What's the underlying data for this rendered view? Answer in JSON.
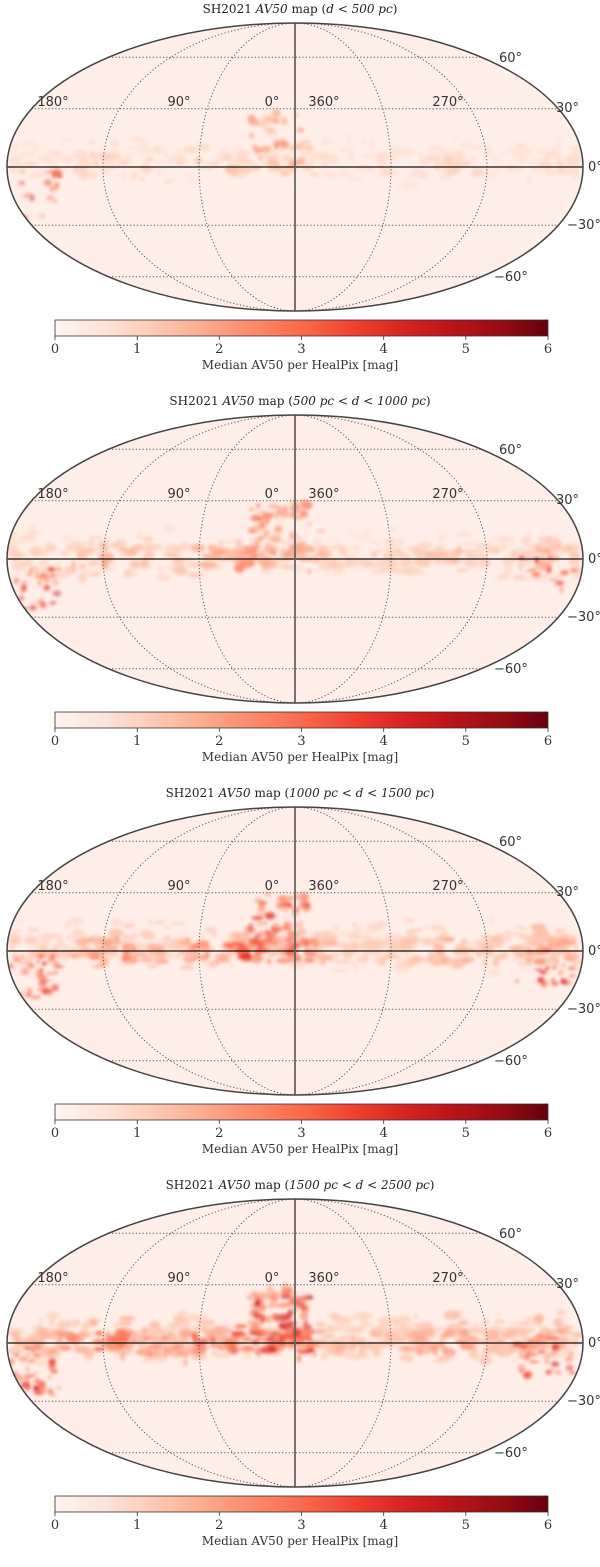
{
  "chart_data": [
    {
      "type": "heatmap",
      "projection": "mollweide",
      "title": {
        "prefix": "SH2021 ",
        "math": "AV50",
        "suffix": " map (",
        "range": "d < 500 pc",
        "close": ")"
      },
      "lon_tick_labels": [
        "180°",
        "90°",
        "0°",
        "360°",
        "270°"
      ],
      "lat_tick_labels": [
        "60°",
        "30°",
        "0°",
        "−30°",
        "−60°"
      ],
      "colorbar": {
        "label": "Median AV50 per HealPix [mag]",
        "ticks": [
          "0",
          "1",
          "2",
          "3",
          "4",
          "5",
          "6"
        ],
        "range": [
          0,
          6
        ],
        "colormap": "Reds"
      },
      "intensity": 0.25
    },
    {
      "type": "heatmap",
      "projection": "mollweide",
      "title": {
        "prefix": "SH2021 ",
        "math": "AV50",
        "suffix": " map (",
        "range": "500 pc < d < 1000 pc",
        "close": ")"
      },
      "lon_tick_labels": [
        "180°",
        "90°",
        "0°",
        "360°",
        "270°"
      ],
      "lat_tick_labels": [
        "60°",
        "30°",
        "0°",
        "−30°",
        "−60°"
      ],
      "colorbar": {
        "label": "Median AV50 per HealPix [mag]",
        "ticks": [
          "0",
          "1",
          "2",
          "3",
          "4",
          "5",
          "6"
        ],
        "range": [
          0,
          6
        ],
        "colormap": "Reds"
      },
      "intensity": 0.55
    },
    {
      "type": "heatmap",
      "projection": "mollweide",
      "title": {
        "prefix": "SH2021 ",
        "math": "AV50",
        "suffix": " map (",
        "range": "1000 pc < d < 1500 pc",
        "close": ")"
      },
      "lon_tick_labels": [
        "180°",
        "90°",
        "0°",
        "360°",
        "270°"
      ],
      "lat_tick_labels": [
        "60°",
        "30°",
        "0°",
        "−30°",
        "−60°"
      ],
      "colorbar": {
        "label": "Median AV50 per HealPix [mag]",
        "ticks": [
          "0",
          "1",
          "2",
          "3",
          "4",
          "5",
          "6"
        ],
        "range": [
          0,
          6
        ],
        "colormap": "Reds"
      },
      "intensity": 0.8
    },
    {
      "type": "heatmap",
      "projection": "mollweide",
      "title": {
        "prefix": "SH2021 ",
        "math": "AV50",
        "suffix": " map (",
        "range": "1500 pc < d < 2500 pc",
        "close": ")"
      },
      "lon_tick_labels": [
        "180°",
        "90°",
        "0°",
        "360°",
        "270°"
      ],
      "lat_tick_labels": [
        "60°",
        "30°",
        "0°",
        "−30°",
        "−60°"
      ],
      "colorbar": {
        "label": "Median AV50 per HealPix [mag]",
        "ticks": [
          "0",
          "1",
          "2",
          "3",
          "4",
          "5",
          "6"
        ],
        "range": [
          0,
          6
        ],
        "colormap": "Reds"
      },
      "intensity": 1.0
    }
  ]
}
